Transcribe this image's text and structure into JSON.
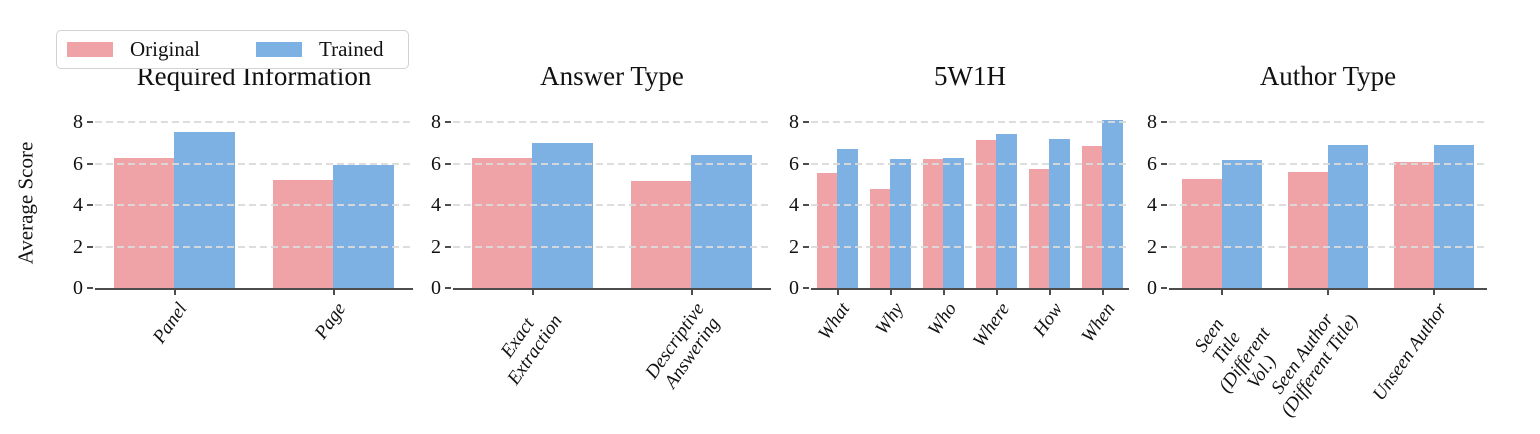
{
  "legend": {
    "items": [
      {
        "label": "Original",
        "color": "#F0A3A7"
      },
      {
        "label": "Trained",
        "color": "#7DB1E3"
      }
    ]
  },
  "ylabel": "Average Score",
  "y_ticks": [
    "0",
    "2",
    "4",
    "6",
    "8"
  ],
  "ylim": [
    0,
    8.5
  ],
  "grid_color": "#dadada",
  "spine_color": "#4d4d4d",
  "chart_data": [
    {
      "type": "bar",
      "title": "Required Information",
      "categories": [
        "Panel",
        "Page"
      ],
      "series": [
        {
          "name": "Original",
          "values": [
            6.3,
            5.2
          ]
        },
        {
          "name": "Trained",
          "values": [
            7.55,
            5.95
          ]
        }
      ],
      "xlabel": "",
      "ylabel": "Average Score",
      "ylim": [
        0,
        8.5
      ],
      "grid": true
    },
    {
      "type": "bar",
      "title": "Answer Type",
      "categories": [
        "Exact\nExtraction",
        "Descriptive\nAnswering"
      ],
      "series": [
        {
          "name": "Original",
          "values": [
            6.3,
            5.15
          ]
        },
        {
          "name": "Trained",
          "values": [
            7.0,
            6.4
          ]
        }
      ],
      "xlabel": "",
      "ylabel": "",
      "ylim": [
        0,
        8.5
      ],
      "grid": true
    },
    {
      "type": "bar",
      "title": "5W1H",
      "categories": [
        "What",
        "Why",
        "Who",
        "Where",
        "How",
        "When"
      ],
      "series": [
        {
          "name": "Original",
          "values": [
            5.55,
            4.8,
            6.25,
            7.15,
            5.75,
            6.85
          ]
        },
        {
          "name": "Trained",
          "values": [
            6.7,
            6.25,
            6.3,
            7.45,
            7.2,
            8.1
          ]
        }
      ],
      "xlabel": "",
      "ylabel": "",
      "ylim": [
        0,
        8.5
      ],
      "grid": true
    },
    {
      "type": "bar",
      "title": "Author Type",
      "categories": [
        "Seen Title\n(Different Vol.)",
        "Seen Author\n(Different Title)",
        "Unseen Author"
      ],
      "series": [
        {
          "name": "Original",
          "values": [
            5.25,
            5.6,
            6.1
          ]
        },
        {
          "name": "Trained",
          "values": [
            6.2,
            6.9,
            6.9
          ]
        }
      ],
      "xlabel": "",
      "ylabel": "",
      "ylim": [
        0,
        8.5
      ],
      "grid": true
    }
  ]
}
